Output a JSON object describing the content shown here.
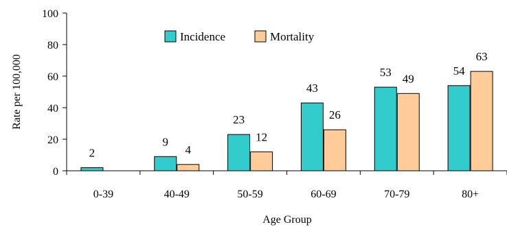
{
  "chart_data": {
    "type": "bar",
    "categories": [
      "0-39",
      "40-49",
      "50-59",
      "60-69",
      "70-79",
      "80+"
    ],
    "series": [
      {
        "name": "Incidence",
        "values": [
          2,
          9,
          23,
          43,
          53,
          54
        ],
        "labels": [
          "2",
          "9",
          "23",
          "43",
          "53",
          "54"
        ],
        "color": "#33CCCC"
      },
      {
        "name": "Mortality",
        "values": [
          0,
          4,
          12,
          26,
          49,
          63
        ],
        "labels": [
          "",
          "4",
          "12",
          "26",
          "49",
          "63"
        ],
        "color": "#FFCC99"
      }
    ],
    "xlabel": "Age Group",
    "ylabel": "Rate per 100,000",
    "ylim": [
      0,
      100
    ],
    "yticks": [
      0,
      20,
      40,
      60,
      80,
      100
    ],
    "ytick_labels": [
      "0",
      "20",
      "40",
      "60",
      "80",
      "100"
    ],
    "grid": false,
    "legend_position": "top-center"
  }
}
